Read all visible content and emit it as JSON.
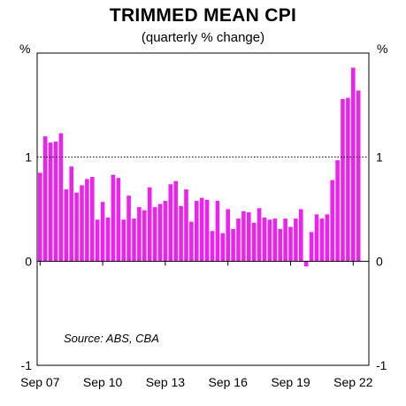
{
  "chart_data": {
    "type": "bar",
    "title": "TRIMMED MEAN CPI",
    "subtitle": "(quarterly % change)",
    "ylabel_left": "%",
    "ylabel_right": "%",
    "ylim": [
      -1,
      2
    ],
    "yticks": [
      -1,
      0,
      1
    ],
    "ytick_labels": [
      "-1",
      "0",
      "1"
    ],
    "xtick_labels": [
      "Sep 07",
      "Sep 10",
      "Sep 13",
      "Sep 16",
      "Sep 19",
      "Sep 22"
    ],
    "reference_line": 1,
    "source": "Source: ABS, CBA",
    "color": "#ee22ee",
    "series": [
      {
        "values": [
          0.85,
          1.2,
          1.14,
          1.15,
          1.23,
          0.69,
          0.91,
          0.66,
          0.73,
          0.79,
          0.81,
          0.4,
          0.57,
          0.42,
          0.83,
          0.8,
          0.4,
          0.63,
          0.41,
          0.52,
          0.49,
          0.71,
          0.52,
          0.55,
          0.58,
          0.74,
          0.77,
          0.53,
          0.69,
          0.38,
          0.58,
          0.61,
          0.59,
          0.29,
          0.58,
          0.27,
          0.5,
          0.31,
          0.41,
          0.48,
          0.47,
          0.37,
          0.51,
          0.42,
          0.4,
          0.41,
          0.31,
          0.41,
          0.33,
          0.41,
          0.5,
          -0.05,
          0.28,
          0.45,
          0.41,
          0.45,
          0.78,
          0.97,
          1.56,
          1.57,
          1.86,
          1.64
        ]
      }
    ]
  }
}
